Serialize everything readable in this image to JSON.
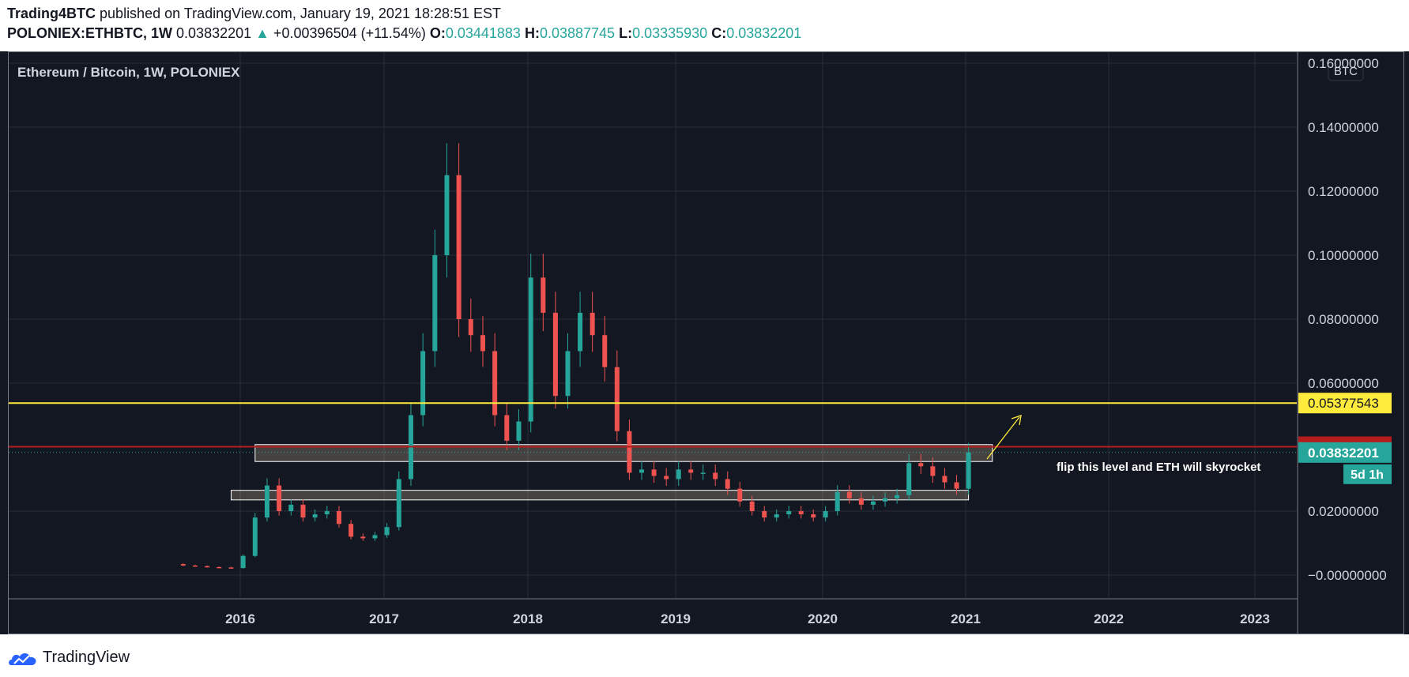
{
  "header": {
    "author": "Trading4BTC",
    "published_text": "published on TradingView.com, January 19, 2021 18:28:51 EST",
    "symbol": "POLONIEX:ETHBTC, 1W",
    "last_price": "0.03832201",
    "change": "+0.00396504 (+11.54%)",
    "open_label": "O:",
    "open_value": "0.03441883",
    "high_label": "H:",
    "high_value": "0.03887745",
    "low_label": "L:",
    "low_value": "0.03335930",
    "close_label": "C:",
    "close_value": "0.03832201"
  },
  "footer": {
    "brand": "TradingView"
  },
  "colors": {
    "up": "#26a69a",
    "down": "#ef5350",
    "yellow": "#ffeb3b",
    "red_line": "#b71c1c",
    "background": "#131722"
  },
  "chart_data": {
    "type": "candlestick",
    "title": "Ethereum / Bitcoin, 1W, POLONIEX",
    "currency_badge": "BTC",
    "y_ticks": [
      "0.16000000",
      "0.14000000",
      "0.12000000",
      "0.10000000",
      "0.08000000",
      "0.06000000",
      "0.02000000",
      "−0.00000000"
    ],
    "x_ticks": [
      "2016",
      "2017",
      "2018",
      "2019",
      "2020",
      "2021",
      "2022",
      "2023"
    ],
    "ylim": [
      -0.009,
      0.162
    ],
    "grid": true,
    "series": [
      {
        "x": [
          "2015-08",
          "2015-09",
          "2015-10",
          "2015-11",
          "2015-12",
          "2016-01",
          "2016-02",
          "2016-03",
          "2016-04",
          "2016-05",
          "2016-06",
          "2016-07",
          "2016-08",
          "2016-09",
          "2016-10",
          "2016-11",
          "2016-12",
          "2017-01",
          "2017-02",
          "2017-03",
          "2017-04",
          "2017-05",
          "2017-06",
          "2017-07",
          "2017-08",
          "2017-09",
          "2017-10",
          "2017-11",
          "2017-12",
          "2018-01",
          "2018-02",
          "2018-03",
          "2018-04",
          "2018-05",
          "2018-06",
          "2018-07",
          "2018-08",
          "2018-09",
          "2018-10",
          "2018-11",
          "2018-12",
          "2019-01",
          "2019-02",
          "2019-03",
          "2019-04",
          "2019-05",
          "2019-06",
          "2019-07",
          "2019-08",
          "2019-09",
          "2019-10",
          "2019-11",
          "2019-12",
          "2020-01",
          "2020-02",
          "2020-03",
          "2020-04",
          "2020-05",
          "2020-06",
          "2020-07",
          "2020-08",
          "2020-09",
          "2020-10",
          "2020-11",
          "2020-12",
          "2021-01"
        ],
        "close": [
          0.003,
          0.0028,
          0.0025,
          0.0024,
          0.0022,
          0.006,
          0.018,
          0.028,
          0.02,
          0.022,
          0.018,
          0.019,
          0.02,
          0.016,
          0.012,
          0.0115,
          0.0125,
          0.015,
          0.03,
          0.05,
          0.07,
          0.1,
          0.125,
          0.08,
          0.075,
          0.07,
          0.05,
          0.042,
          0.048,
          0.093,
          0.082,
          0.056,
          0.07,
          0.082,
          0.075,
          0.065,
          0.045,
          0.032,
          0.033,
          0.031,
          0.03,
          0.033,
          0.032,
          0.032,
          0.03,
          0.027,
          0.023,
          0.02,
          0.018,
          0.019,
          0.02,
          0.019,
          0.018,
          0.02,
          0.026,
          0.024,
          0.022,
          0.023,
          0.024,
          0.025,
          0.035,
          0.034,
          0.031,
          0.029,
          0.027,
          0.0383
        ]
      }
    ],
    "horizontal_lines": [
      {
        "value": 0.05377543,
        "label": "0.05377543",
        "color": "yellow"
      },
      {
        "value": 0.04011423,
        "label": "0.04011423",
        "color": "red"
      }
    ],
    "price_badges": [
      {
        "label": "0.03832201",
        "value": 0.03832201
      },
      {
        "label": "5d 1h"
      }
    ],
    "zones": [
      {
        "from_date": "2016-02",
        "to_date": "2021-03",
        "low": 0.0355,
        "high": 0.0408
      },
      {
        "from_date": "2015-12",
        "to_date": "2021-01",
        "low": 0.0235,
        "high": 0.0265
      }
    ],
    "annotation": "flip this level and ETH will skyrocket"
  }
}
